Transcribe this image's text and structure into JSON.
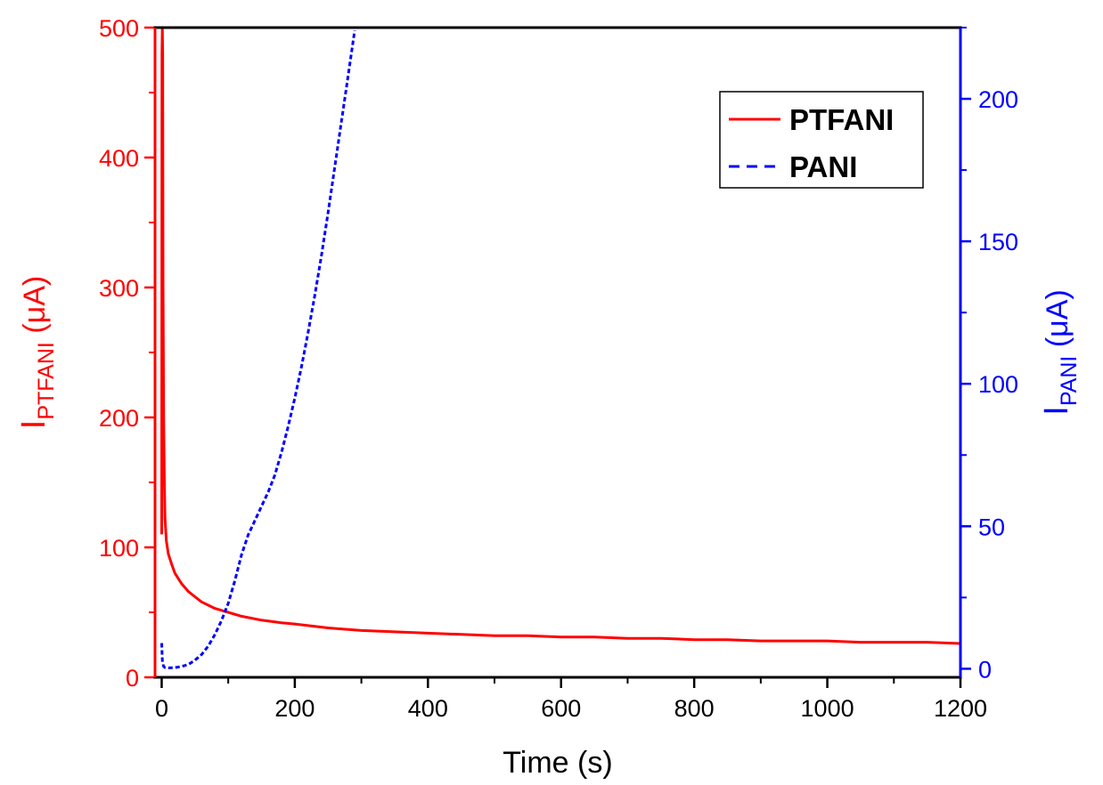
{
  "chart_data": {
    "type": "line",
    "x_axis": {
      "label": "Time (s)",
      "min": -10,
      "max": 1200,
      "ticks": [
        0,
        200,
        400,
        600,
        800,
        1000,
        1200
      ],
      "tick_labels": [
        "0",
        "200",
        "400",
        "600",
        "800",
        "1000",
        "1200"
      ],
      "minor_ticks": [
        100,
        300,
        500,
        700,
        900,
        1100
      ],
      "color": "#000000"
    },
    "y_left": {
      "label_main": "I",
      "label_sub": "PTFANI",
      "label_unit": " (μA)",
      "min": 0,
      "max": 500,
      "ticks": [
        0,
        100,
        200,
        300,
        400,
        500
      ],
      "tick_labels": [
        "0",
        "100",
        "200",
        "300",
        "400",
        "500"
      ],
      "minor_ticks": [
        50,
        150,
        250,
        350,
        450
      ],
      "color": "#ff0000"
    },
    "y_right": {
      "label_main": "I",
      "label_sub": "PANI",
      "label_unit": " (μA)",
      "min": -3,
      "max": 225,
      "ticks": [
        0,
        50,
        100,
        150,
        200
      ],
      "tick_labels": [
        "0",
        "50",
        "100",
        "150",
        "200"
      ],
      "minor_ticks": [
        25,
        75,
        125,
        175,
        225
      ],
      "color": "#0000ff"
    },
    "grid": false,
    "legend": {
      "position": "top-right",
      "show_box": true
    },
    "series": [
      {
        "name": "PTFANI",
        "axis": "left",
        "color": "#ff0000",
        "style": "solid",
        "x": [
          0,
          0.5,
          1,
          1.5,
          2,
          3,
          4,
          5,
          7,
          10,
          15,
          20,
          30,
          40,
          50,
          60,
          80,
          100,
          120,
          150,
          180,
          200,
          250,
          300,
          350,
          400,
          450,
          500,
          550,
          600,
          650,
          700,
          750,
          800,
          850,
          900,
          950,
          1000,
          1050,
          1100,
          1150,
          1200
        ],
        "y": [
          110,
          480,
          500,
          480,
          300,
          200,
          150,
          122,
          105,
          95,
          87,
          80,
          72,
          66,
          62,
          58,
          53,
          50,
          47,
          44,
          42,
          41,
          38,
          36,
          35,
          34,
          33,
          32,
          32,
          31,
          31,
          30,
          30,
          29,
          29,
          28,
          28,
          28,
          27,
          27,
          27,
          26
        ]
      },
      {
        "name": "PANI",
        "axis": "right",
        "color": "#0000ff",
        "style": "dashed",
        "x": [
          0,
          1,
          2,
          3,
          5,
          10,
          20,
          30,
          40,
          50,
          60,
          70,
          80,
          90,
          100,
          110,
          120,
          130,
          140,
          150,
          160,
          170,
          180,
          190,
          200,
          210,
          220,
          230,
          240,
          250,
          260,
          270,
          280,
          290
        ],
        "y": [
          9,
          3,
          1.5,
          0.8,
          0.4,
          0.3,
          0.4,
          0.8,
          1.5,
          3,
          5,
          8,
          12,
          17,
          23,
          31,
          40,
          47,
          52,
          57,
          62,
          68,
          76,
          85,
          95,
          106,
          118,
          131,
          145,
          160,
          176,
          192,
          208,
          224
        ]
      }
    ]
  }
}
